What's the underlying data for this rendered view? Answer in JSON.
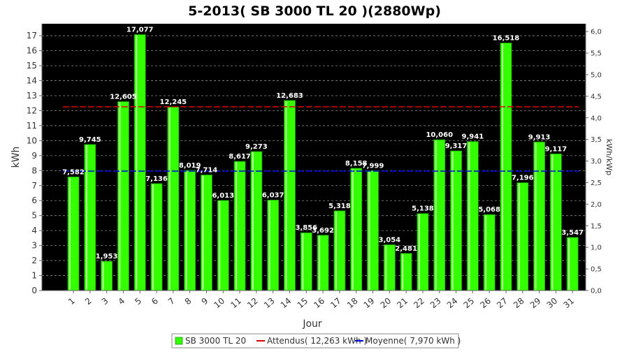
{
  "chart_data": {
    "type": "bar",
    "title": "5-2013( SB 3000 TL 20 )(2880Wp)",
    "xlabel": "Jour",
    "ylabel": "kWh",
    "y2label": "kWh/kWp",
    "ylim": [
      0,
      17.8
    ],
    "y2lim": [
      0,
      6.18
    ],
    "yticks": [
      "0",
      "1",
      "2",
      "3",
      "4",
      "5",
      "6",
      "7",
      "8",
      "9",
      "10",
      "11",
      "12",
      "13",
      "14",
      "15",
      "16",
      "17"
    ],
    "y2ticks": [
      "0,0",
      "0,5",
      "1,0",
      "1,5",
      "2,0",
      "2,5",
      "3,0",
      "3,5",
      "4,0",
      "4,5",
      "5,0",
      "5,5",
      "6,0"
    ],
    "grid": true,
    "legend_position": "bottom",
    "categories": [
      "1",
      "2",
      "3",
      "4",
      "5",
      "6",
      "7",
      "8",
      "9",
      "10",
      "11",
      "12",
      "13",
      "14",
      "15",
      "16",
      "17",
      "18",
      "19",
      "20",
      "21",
      "22",
      "23",
      "24",
      "25",
      "26",
      "27",
      "28",
      "29",
      "30",
      "31"
    ],
    "series": [
      {
        "name": "SB 3000 TL 20",
        "color": "#33ff00",
        "values": [
          7.582,
          9.745,
          1.953,
          12.605,
          17.077,
          7.136,
          12.245,
          8.019,
          7.714,
          6.013,
          8.617,
          9.273,
          6.037,
          12.683,
          3.856,
          3.692,
          5.318,
          8.158,
          7.999,
          3.054,
          2.481,
          5.138,
          10.06,
          9.317,
          9.941,
          5.068,
          16.518,
          7.196,
          9.913,
          9.117,
          3.547
        ],
        "labels": [
          "7,582",
          "9,745",
          "1,953",
          "12,605",
          "17,077",
          "7,136",
          "12,245",
          "8,019",
          "7,714",
          "6,013",
          "8,617",
          "9,273",
          "6,037",
          "12,683",
          "3,856",
          "3,692",
          "5,318",
          "8,158",
          "7,999",
          "3,054",
          "2,481",
          "5,138",
          "10,060",
          "9,317",
          "9,941",
          "5,068",
          "16,518",
          "7,196",
          "9,913",
          "9,117",
          "3,547"
        ]
      }
    ],
    "reference_lines": [
      {
        "name": "Attendus( 12,263 kWh )",
        "value": 12.263,
        "color": "#dd0000"
      },
      {
        "name": "Moyenne( 7,970 kWh )",
        "value": 7.97,
        "color": "#0000dd"
      }
    ]
  }
}
